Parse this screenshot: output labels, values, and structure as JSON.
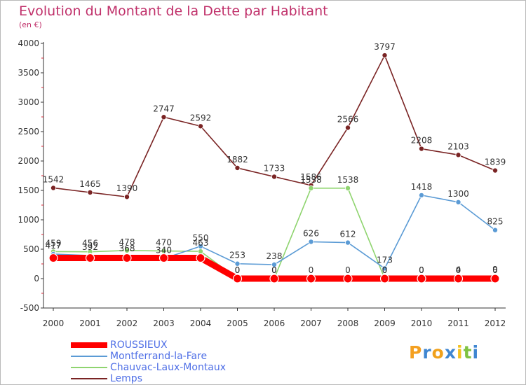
{
  "title": "Evolution du Montant de la Dette par Habitant",
  "subtitle": "(en €)",
  "brand": {
    "letters": [
      "P",
      "r",
      "o",
      "x",
      "i",
      "t",
      "i"
    ],
    "colors": [
      "#f4a020",
      "#3f86d1",
      "#f0a11c",
      "#3f86d1",
      "#f2c11e",
      "#7fc241",
      "#3f86d1"
    ]
  },
  "chart_data": {
    "type": "line",
    "title": "Evolution du Montant de la Dette par Habitant",
    "subtitle": "(en €)",
    "x": [
      "2000",
      "2001",
      "2002",
      "2003",
      "2004",
      "2005",
      "2006",
      "2007",
      "2008",
      "2009",
      "2010",
      "2011",
      "2012"
    ],
    "ylim": [
      -500,
      4000
    ],
    "yticks": [
      "-500",
      "0",
      "500",
      "1000",
      "1500",
      "2000",
      "2500",
      "3000",
      "3500",
      "4000"
    ],
    "grid": false,
    "legend_position": "bottom-left",
    "series": [
      {
        "name": "ROUSSIEUX",
        "color": "#ff0000",
        "values": [
          351,
          351,
          351,
          351,
          351,
          0,
          0,
          0,
          0,
          0,
          0,
          0,
          0
        ],
        "labels": [
          "",
          "",
          "",
          "",
          "",
          "0",
          "0",
          "0",
          "0",
          "0",
          "0",
          "0",
          "0"
        ]
      },
      {
        "name": "Montferrand-la-Fare",
        "color": "#5b9bd5",
        "values": [
          417,
          392,
          368,
          340,
          550,
          253,
          238,
          626,
          612,
          173,
          1418,
          1300,
          825
        ],
        "labels": [
          "417",
          "392",
          "368",
          "340",
          "550",
          "253",
          "238",
          "626",
          "612",
          "173",
          "1418",
          "1300",
          "825"
        ]
      },
      {
        "name": "Chauvac-Laux-Montaux",
        "color": "#8fd46f",
        "values": [
          459,
          456,
          478,
          470,
          463,
          0,
          0,
          1538,
          1538,
          0,
          0,
          4,
          9
        ],
        "labels": [
          "459",
          "456",
          "478",
          "470",
          "463",
          "0",
          "0",
          "1538",
          "1538",
          "0",
          "0",
          "4",
          "9"
        ]
      },
      {
        "name": "Lemps",
        "color": "#7a2424",
        "values": [
          1542,
          1465,
          1390,
          2747,
          2592,
          1882,
          1733,
          1586,
          2566,
          3797,
          2208,
          2103,
          1839
        ],
        "labels": [
          "1542",
          "1465",
          "1390",
          "2747",
          "2592",
          "1882",
          "1733",
          "1586",
          "2566",
          "3797",
          "2208",
          "2103",
          "1839"
        ]
      }
    ]
  }
}
